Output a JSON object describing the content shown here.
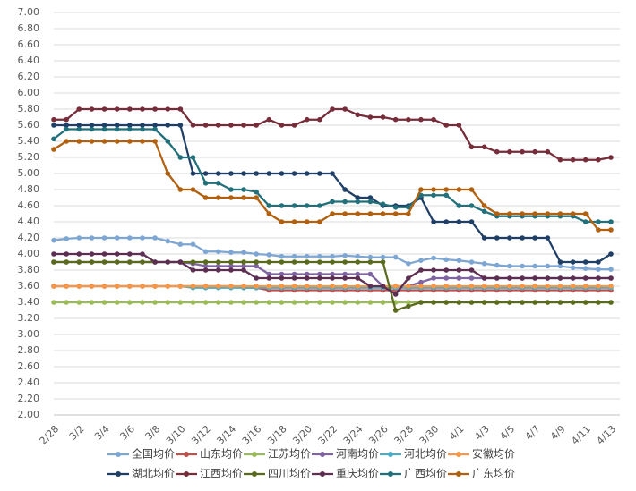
{
  "chart_data": {
    "type": "line",
    "categories": [
      "2/28",
      null,
      "3/2",
      null,
      "3/4",
      null,
      "3/6",
      null,
      "3/8",
      null,
      "3/10",
      null,
      "3/12",
      null,
      "3/14",
      null,
      "3/16",
      null,
      "3/18",
      null,
      "3/20",
      null,
      "3/22",
      null,
      "3/24",
      null,
      "3/26",
      null,
      "3/28",
      null,
      "3/30",
      null,
      "4/1",
      null,
      "4/3",
      null,
      "4/5",
      null,
      "4/7",
      null,
      "4/9",
      null,
      "4/11",
      null,
      "4/13"
    ],
    "ylim": [
      2,
      7
    ],
    "yticks": [
      {
        "value": 2,
        "label": "2.00"
      },
      {
        "value": 2.2,
        "label": "2.20"
      },
      {
        "value": 2.4,
        "label": "2.40"
      },
      {
        "value": 2.6,
        "label": "2.60"
      },
      {
        "value": 2.8,
        "label": "2.80"
      },
      {
        "value": 3,
        "label": "3.00"
      },
      {
        "value": 3.2,
        "label": "3.20"
      },
      {
        "value": 3.4,
        "label": "3.40"
      },
      {
        "value": 3.6,
        "label": "3.60"
      },
      {
        "value": 3.8,
        "label": "3.80"
      },
      {
        "value": 4,
        "label": "4.00"
      },
      {
        "value": 4.2,
        "label": "4.20"
      },
      {
        "value": 4.4,
        "label": "4.40"
      },
      {
        "value": 4.6,
        "label": "4.60"
      },
      {
        "value": 4.8,
        "label": "4.80"
      },
      {
        "value": 5,
        "label": "5.00"
      },
      {
        "value": 5.2,
        "label": "5.20"
      },
      {
        "value": 5.4,
        "label": "5.40"
      },
      {
        "value": 5.6,
        "label": "5.60"
      },
      {
        "value": 5.8,
        "label": "5.80"
      },
      {
        "value": 6,
        "label": "6.00"
      },
      {
        "value": 6.2,
        "label": "6.20"
      },
      {
        "value": 6.4,
        "label": "6.40"
      },
      {
        "value": 6.6,
        "label": "6.60"
      },
      {
        "value": 6.8,
        "label": "6.80"
      },
      {
        "value": 7,
        "label": "7.00"
      }
    ],
    "grid": true,
    "legend": "bottom",
    "series": [
      {
        "name": "全国均价",
        "color": "#7ea6d3",
        "values": [
          4.17,
          4.19,
          4.2,
          4.2,
          4.2,
          4.2,
          4.2,
          4.2,
          4.2,
          4.16,
          4.12,
          4.12,
          4.03,
          4.03,
          4.02,
          4.02,
          4.0,
          3.99,
          3.97,
          3.97,
          3.97,
          3.97,
          3.97,
          3.98,
          3.97,
          3.96,
          3.96,
          3.96,
          3.88,
          3.92,
          3.95,
          3.93,
          3.92,
          3.9,
          3.88,
          3.86,
          3.85,
          3.85,
          3.85,
          3.85,
          3.85,
          3.83,
          3.82,
          3.81,
          3.81
        ]
      },
      {
        "name": "山东均价",
        "color": "#c0504d",
        "values": [
          3.6,
          3.6,
          3.6,
          3.6,
          3.6,
          3.6,
          3.6,
          3.6,
          3.6,
          3.6,
          3.6,
          3.6,
          3.6,
          3.6,
          3.6,
          3.58,
          3.58,
          3.55,
          3.55,
          3.55,
          3.55,
          3.55,
          3.55,
          3.55,
          3.55,
          3.55,
          3.55,
          3.55,
          3.55,
          3.55,
          3.55,
          3.55,
          3.55,
          3.55,
          3.55,
          3.55,
          3.55,
          3.55,
          3.55,
          3.55,
          3.55,
          3.55,
          3.55,
          3.55,
          3.55
        ]
      },
      {
        "name": "江苏均价",
        "color": "#9bbb59",
        "values": [
          3.4,
          3.4,
          3.4,
          3.4,
          3.4,
          3.4,
          3.4,
          3.4,
          3.4,
          3.4,
          3.4,
          3.4,
          3.4,
          3.4,
          3.4,
          3.4,
          3.4,
          3.4,
          3.4,
          3.4,
          3.4,
          3.4,
          3.4,
          3.4,
          3.4,
          3.4,
          3.4,
          3.4,
          3.4,
          3.4,
          3.4,
          3.4,
          3.4,
          3.4,
          3.4,
          3.4,
          3.4,
          3.4,
          3.4,
          3.4,
          3.4,
          3.4,
          3.4,
          3.4,
          3.4
        ]
      },
      {
        "name": "河南均价",
        "color": "#8064a2",
        "values": [
          3.9,
          3.9,
          3.9,
          3.9,
          3.9,
          3.9,
          3.9,
          3.9,
          3.9,
          3.9,
          3.9,
          3.88,
          3.85,
          3.85,
          3.85,
          3.85,
          3.85,
          3.75,
          3.75,
          3.75,
          3.75,
          3.75,
          3.75,
          3.75,
          3.75,
          3.75,
          3.6,
          3.6,
          3.6,
          3.65,
          3.7,
          3.7,
          3.7,
          3.7,
          3.7,
          3.7,
          3.7,
          3.7,
          3.7,
          3.7,
          3.7,
          3.7,
          3.7,
          3.7,
          3.7
        ]
      },
      {
        "name": "河北均价",
        "color": "#4bacc6",
        "values": [
          3.6,
          3.6,
          3.6,
          3.6,
          3.6,
          3.6,
          3.6,
          3.6,
          3.6,
          3.6,
          3.6,
          3.58,
          3.58,
          3.58,
          3.58,
          3.58,
          3.58,
          3.58,
          3.58,
          3.58,
          3.58,
          3.58,
          3.58,
          3.58,
          3.58,
          3.58,
          3.58,
          3.58,
          3.58,
          3.58,
          3.58,
          3.58,
          3.58,
          3.58,
          3.58,
          3.58,
          3.58,
          3.58,
          3.58,
          3.58,
          3.58,
          3.58,
          3.58,
          3.58,
          3.58
        ]
      },
      {
        "name": "安徽均价",
        "color": "#f79646",
        "values": [
          3.6,
          3.6,
          3.6,
          3.6,
          3.6,
          3.6,
          3.6,
          3.6,
          3.6,
          3.6,
          3.6,
          3.6,
          3.6,
          3.6,
          3.6,
          3.6,
          3.6,
          3.6,
          3.6,
          3.6,
          3.6,
          3.6,
          3.6,
          3.6,
          3.6,
          3.6,
          3.6,
          3.6,
          3.6,
          3.6,
          3.6,
          3.6,
          3.6,
          3.6,
          3.6,
          3.6,
          3.6,
          3.6,
          3.6,
          3.6,
          3.6,
          3.6,
          3.6,
          3.6,
          3.6
        ]
      },
      {
        "name": "湖北均价",
        "color": "#1f3f66",
        "values": [
          5.6,
          5.6,
          5.6,
          5.6,
          5.6,
          5.6,
          5.6,
          5.6,
          5.6,
          5.6,
          5.6,
          5.0,
          5.0,
          5.0,
          5.0,
          5.0,
          5.0,
          5.0,
          5.0,
          5.0,
          5.0,
          5.0,
          5.0,
          4.8,
          4.7,
          4.7,
          4.6,
          4.6,
          4.6,
          4.7,
          4.4,
          4.4,
          4.4,
          4.4,
          4.2,
          4.2,
          4.2,
          4.2,
          4.2,
          4.2,
          3.9,
          3.9,
          3.9,
          3.9,
          4.0
        ]
      },
      {
        "name": "江西均价",
        "color": "#772c3a",
        "values": [
          5.67,
          5.67,
          5.8,
          5.8,
          5.8,
          5.8,
          5.8,
          5.8,
          5.8,
          5.8,
          5.8,
          5.6,
          5.6,
          5.6,
          5.6,
          5.6,
          5.6,
          5.67,
          5.6,
          5.6,
          5.67,
          5.67,
          5.8,
          5.8,
          5.73,
          5.7,
          5.7,
          5.67,
          5.67,
          5.67,
          5.67,
          5.6,
          5.6,
          5.33,
          5.33,
          5.27,
          5.27,
          5.27,
          5.27,
          5.27,
          5.17,
          5.17,
          5.17,
          5.17,
          5.2
        ]
      },
      {
        "name": "四川均价",
        "color": "#5a6b1e",
        "values": [
          3.9,
          3.9,
          3.9,
          3.9,
          3.9,
          3.9,
          3.9,
          3.9,
          3.9,
          3.9,
          3.9,
          3.9,
          3.9,
          3.9,
          3.9,
          3.9,
          3.9,
          3.9,
          3.9,
          3.9,
          3.9,
          3.9,
          3.9,
          3.9,
          3.9,
          3.9,
          3.9,
          3.3,
          3.35,
          3.4,
          3.4,
          3.4,
          3.4,
          3.4,
          3.4,
          3.4,
          3.4,
          3.4,
          3.4,
          3.4,
          3.4,
          3.4,
          3.4,
          3.4,
          3.4
        ]
      },
      {
        "name": "重庆均价",
        "color": "#5c2f52",
        "values": [
          4.0,
          4.0,
          4.0,
          4.0,
          4.0,
          4.0,
          4.0,
          4.0,
          3.9,
          3.9,
          3.9,
          3.8,
          3.8,
          3.8,
          3.8,
          3.8,
          3.7,
          3.7,
          3.7,
          3.7,
          3.7,
          3.7,
          3.7,
          3.7,
          3.7,
          3.6,
          3.6,
          3.5,
          3.7,
          3.8,
          3.8,
          3.8,
          3.8,
          3.8,
          3.7,
          3.7,
          3.7,
          3.7,
          3.7,
          3.7,
          3.7,
          3.7,
          3.7,
          3.7,
          3.7
        ]
      },
      {
        "name": "广西均价",
        "color": "#22707a",
        "values": [
          5.43,
          5.55,
          5.55,
          5.55,
          5.55,
          5.55,
          5.55,
          5.55,
          5.55,
          5.4,
          5.2,
          5.2,
          4.88,
          4.88,
          4.8,
          4.8,
          4.77,
          4.6,
          4.6,
          4.6,
          4.6,
          4.6,
          4.65,
          4.65,
          4.65,
          4.65,
          4.62,
          4.58,
          4.58,
          4.73,
          4.73,
          4.73,
          4.6,
          4.6,
          4.53,
          4.47,
          4.47,
          4.47,
          4.47,
          4.47,
          4.47,
          4.47,
          4.4,
          4.4,
          4.4
        ]
      },
      {
        "name": "广东均价",
        "color": "#b0600f",
        "values": [
          5.3,
          5.4,
          5.4,
          5.4,
          5.4,
          5.4,
          5.4,
          5.4,
          5.4,
          5.0,
          4.8,
          4.8,
          4.7,
          4.7,
          4.7,
          4.7,
          4.7,
          4.5,
          4.4,
          4.4,
          4.4,
          4.4,
          4.5,
          4.5,
          4.5,
          4.5,
          4.5,
          4.5,
          4.5,
          4.8,
          4.8,
          4.8,
          4.8,
          4.8,
          4.6,
          4.5,
          4.5,
          4.5,
          4.5,
          4.5,
          4.5,
          4.5,
          4.5,
          4.3,
          4.3
        ]
      }
    ]
  }
}
